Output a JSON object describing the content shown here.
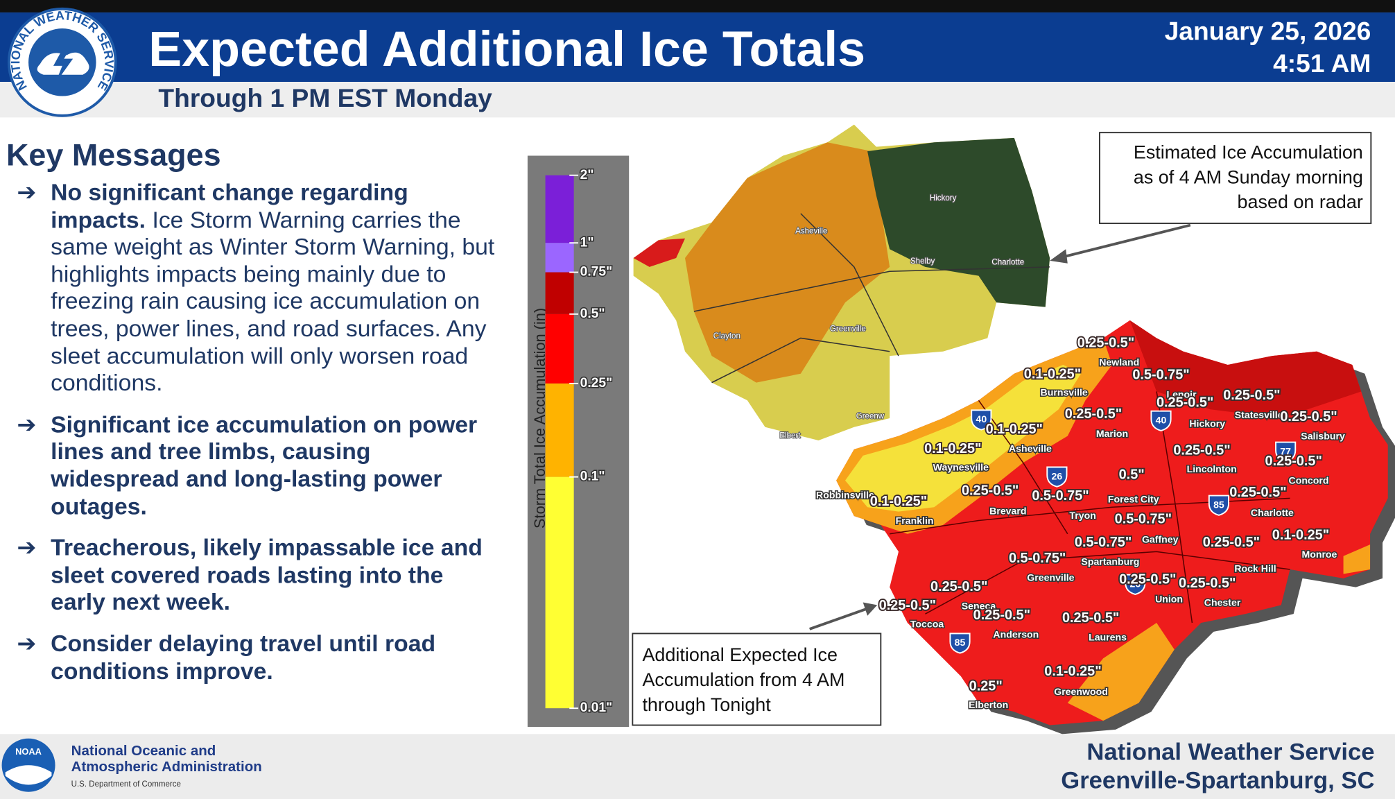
{
  "header": {
    "logo_text": "NATIONAL WEATHER SERVICE",
    "title": "Expected Additional Ice Totals",
    "subtitle": "Through 1 PM EST Monday",
    "date": "January 25, 2026",
    "time": "4:51 AM"
  },
  "key_messages": {
    "heading": "Key Messages",
    "items": [
      {
        "bold": "No significant change regarding impacts.",
        "text": "Ice Storm Warning carries the same weight as Winter Storm Warning, but highlights impacts being mainly due to freezing rain causing ice accumulation on trees, power lines, and road surfaces. Any sleet accumulation will only worsen road conditions."
      },
      {
        "bold": "Significant ice accumulation on power lines and tree limbs, causing widespread and long-lasting power outages."
      },
      {
        "bold": "Treacherous, likely impassable ice and sleet covered roads lasting into the early next week."
      },
      {
        "bold": "Consider delaying travel until road conditions improve."
      }
    ]
  },
  "legend": {
    "title": "Storm Total Ice Accumulation (in)",
    "ticks": [
      "2\"",
      "1\"",
      "0.75\"",
      "0.5\"",
      "0.25\"",
      "0.1\"",
      "0.01\""
    ],
    "colors": [
      "#7b1fd8",
      "#9b66ff",
      "#c00000",
      "#ff0000",
      "#ffb300",
      "#ffff33"
    ]
  },
  "map": {
    "upper_cities": [
      "Hickory",
      "Asheville",
      "Shelby",
      "Charlotte",
      "Clayton",
      "Greenville",
      "Greenw",
      "Elbert"
    ],
    "amounts": [
      "0.25-0.5\"",
      "0.1-0.25\"",
      "0.5-0.75\"",
      "0.25-0.5\"",
      "0.25-0.5\"",
      "0.25-0.5\"",
      "0.25-0.5\"",
      "0.1-0.25\"",
      "0.1-0.25\"",
      "0.25-0.5\"",
      "0.25-0.5\"",
      "0.5\"",
      "0.25-0.5\"",
      "0.5-0.75\"",
      "0.25-0.5\"",
      "0.1-0.25\"",
      "0.5-0.75\"",
      "0.5-0.75\"",
      "0.25-0.5\"",
      "0.1-0.25\"",
      "0.5-0.75\"",
      "0.25-0.5\"",
      "0.25-0.5\"",
      "0.25-0.5\"",
      "0.25-0.5\"",
      "0.25-0.5\"",
      "0.25-0.5\"",
      "0.1-0.25\"",
      "0.25\""
    ],
    "cities": [
      "Newland",
      "Burnsville",
      "Lenoir",
      "Statesville",
      "Marion",
      "Hickory",
      "Salisbury",
      "Asheville",
      "Waynesville",
      "Lincolnton",
      "Concord",
      "Forest City",
      "Robbinsville",
      "Brevard",
      "Tryon",
      "Charlotte",
      "Franklin",
      "Gaffney",
      "Spartanburg",
      "Rock Hill",
      "Monroe",
      "Greenville",
      "Union",
      "Chester",
      "Seneca",
      "Toccoa",
      "Anderson",
      "Laurens",
      "Greenwood",
      "Elberton"
    ],
    "interstates": [
      "40",
      "40",
      "26",
      "77",
      "85",
      "26",
      "85"
    ]
  },
  "callouts": {
    "upper": [
      "Estimated Ice Accumulation",
      "as of 4 AM Sunday morning",
      "based on radar"
    ],
    "lower": [
      "Additional Expected Ice",
      "Accumulation from 4 AM",
      "through Tonight"
    ]
  },
  "footer": {
    "noaa_logo": "NOAA",
    "agency": [
      "National Oceanic and",
      "Atmospheric Administration"
    ],
    "department": "U.S. Department of Commerce",
    "office": [
      "National Weather Service",
      "Greenville-Spartanburg, SC"
    ]
  }
}
